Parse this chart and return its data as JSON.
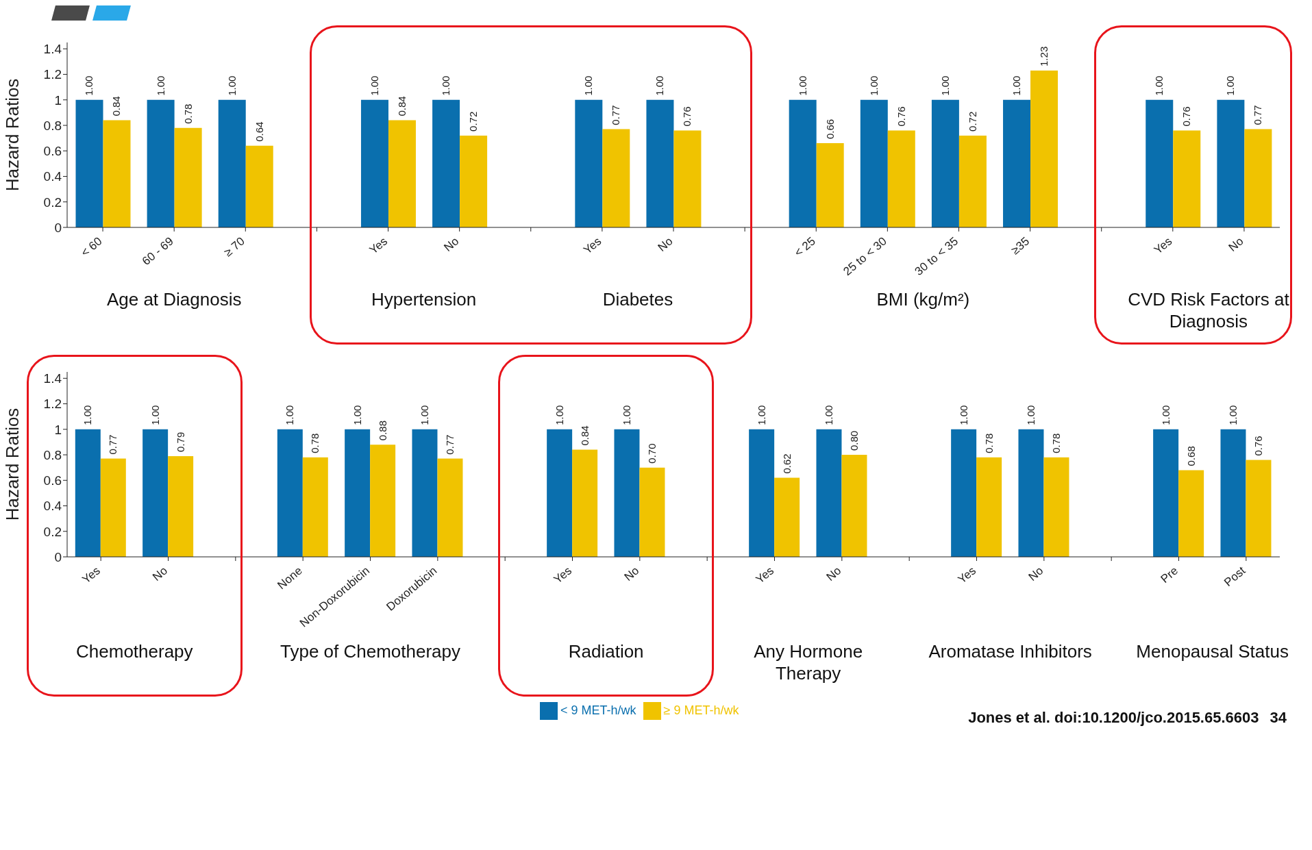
{
  "chart_data": [
    {
      "type": "bar",
      "ylabel": "Hazard Ratios",
      "ylim": [
        0,
        1.45
      ],
      "yticks": [
        0,
        0.2,
        0.4,
        0.6,
        0.8,
        1,
        1.2,
        1.4
      ],
      "legend": false,
      "categories": [
        "< 60",
        "60 - 69",
        "≥ 70",
        null,
        "Yes",
        "No",
        null,
        "Yes",
        "No",
        null,
        "< 25",
        "25 to < 30",
        "30 to < 35",
        "≥35",
        null,
        "Yes",
        "No"
      ],
      "series": [
        {
          "color": "#0a6fae",
          "values": [
            1,
            1,
            1,
            null,
            1,
            1,
            null,
            1,
            1,
            null,
            1,
            1,
            1,
            1,
            null,
            1,
            1
          ],
          "value_labels": [
            "1.00",
            "1.00",
            "1.00",
            null,
            "1.00",
            "1.00",
            null,
            "1.00",
            "1.00",
            null,
            "1.00",
            "1.00",
            "1.00",
            "1.00",
            null,
            "1.00",
            "1.00"
          ]
        },
        {
          "color": "#f0c300",
          "values": [
            0.84,
            0.78,
            0.64,
            null,
            0.84,
            0.72,
            null,
            0.77,
            0.76,
            null,
            0.66,
            0.76,
            0.72,
            1.23,
            null,
            0.76,
            0.77
          ],
          "value_labels": [
            "0.84",
            "0.78",
            "0.64",
            null,
            "0.84",
            "0.72",
            null,
            "0.77",
            "0.76",
            null,
            "0.66",
            "0.76",
            "0.72",
            "1.23",
            null,
            "0.76",
            "0.77"
          ]
        }
      ],
      "annotations": [
        "Age at Diagnosis",
        "Hypertension",
        "Diabetes",
        "BMI (kg/m²)",
        "CVD Risk Factors at Diagnosis"
      ]
    },
    {
      "type": "bar",
      "ylabel": "Hazard Ratios",
      "ylim": [
        0,
        1.45
      ],
      "yticks": [
        0,
        0.2,
        0.4,
        0.6,
        0.8,
        1,
        1.2,
        1.4
      ],
      "legend": "bottom",
      "categories": [
        "Yes",
        "No",
        null,
        "None",
        "Non-Doxorubicin",
        "Doxorubicin",
        null,
        "Yes",
        "No",
        null,
        "Yes",
        "No",
        null,
        "Yes",
        "No",
        null,
        "Pre",
        "Post"
      ],
      "series": [
        {
          "name": "< 9 MET-h/wk",
          "color": "#0a6fae",
          "values": [
            1,
            1,
            null,
            1,
            1,
            1,
            null,
            1,
            1,
            null,
            1,
            1,
            null,
            1,
            1,
            null,
            1,
            1
          ],
          "value_labels": [
            "1.00",
            "1.00",
            null,
            "1.00",
            "1.00",
            "1.00",
            null,
            "1.00",
            "1.00",
            null,
            "1.00",
            "1.00",
            null,
            "1.00",
            "1.00",
            null,
            "1.00",
            "1.00"
          ]
        },
        {
          "name": "≥ 9 MET-h/wk",
          "color": "#f0c300",
          "values": [
            0.77,
            0.79,
            null,
            0.78,
            0.88,
            0.77,
            null,
            0.84,
            0.7,
            null,
            0.62,
            0.8,
            null,
            0.78,
            0.78,
            null,
            0.68,
            0.76
          ],
          "value_labels": [
            "0.77",
            "0.79",
            null,
            "0.78",
            "0.88",
            "0.77",
            null,
            "0.84",
            "0.70",
            null,
            "0.62",
            "0.80",
            null,
            "0.78",
            "0.78",
            null,
            "0.68",
            "0.76"
          ]
        }
      ],
      "annotations": [
        "Chemotherapy",
        "Type of Chemotherapy",
        "Radiation",
        "Any Hormone Therapy",
        "Aromatase Inhibitors",
        "Menopausal Status",
        "Jones et al. doi:10.1200/jco.2015.65.6603",
        "34"
      ]
    }
  ]
}
